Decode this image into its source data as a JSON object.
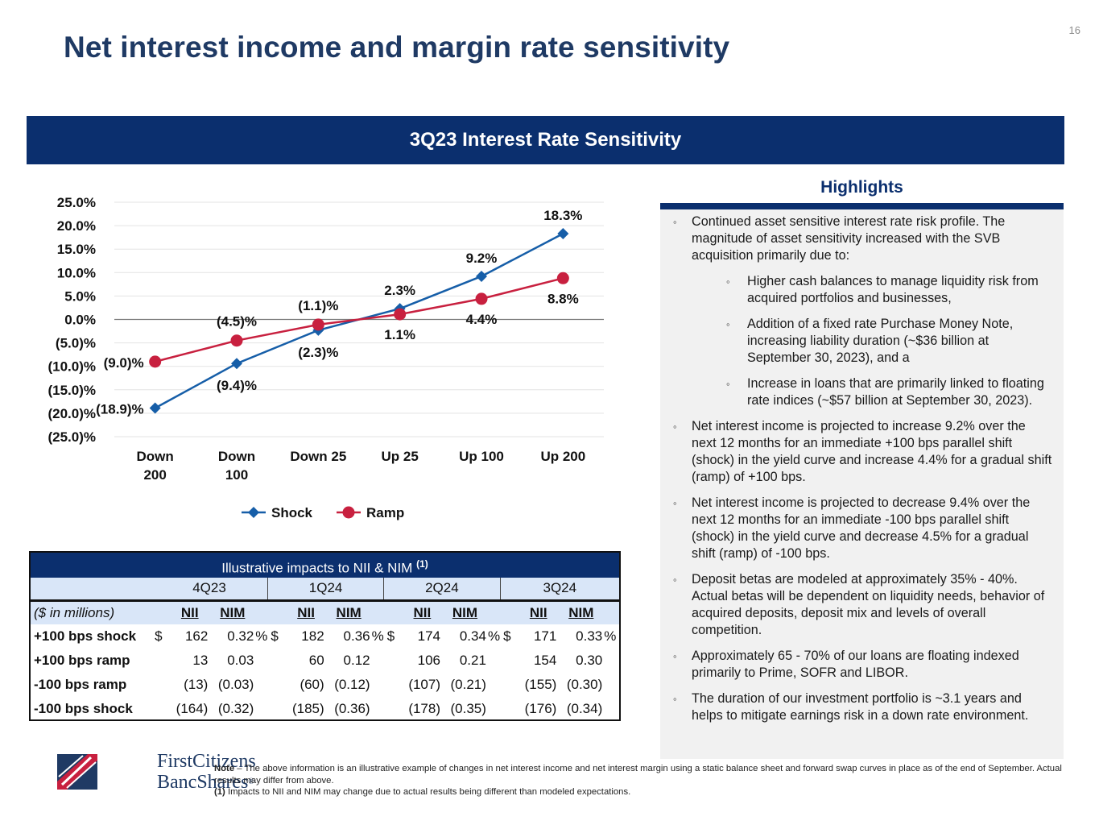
{
  "page": {
    "number": "16",
    "title": "Net interest income and margin rate sensitivity",
    "banner": "3Q23 Interest Rate Sensitivity"
  },
  "chart_data": {
    "type": "line",
    "title": "",
    "xlabel": "",
    "ylabel": "",
    "categories": [
      "Down 200",
      "Down 100",
      "Down 25",
      "Up 25",
      "Up 100",
      "Up 200"
    ],
    "category_lines": [
      [
        "Down",
        "200"
      ],
      [
        "Down",
        "100"
      ],
      [
        "Down 25"
      ],
      [
        "Up 25"
      ],
      [
        "Up 100"
      ],
      [
        "Up 200"
      ]
    ],
    "ylim": [
      -25,
      25
    ],
    "yticks": [
      25,
      20,
      15,
      10,
      5,
      0,
      -5,
      -10,
      -15,
      -20,
      -25
    ],
    "ytick_labels": [
      "25.0%",
      "20.0%",
      "15.0%",
      "10.0%",
      "5.0%",
      "0.0%",
      "(5.0)%",
      "(10.0)%",
      "(15.0)%",
      "(20.0)%",
      "(25.0)%"
    ],
    "grid": true,
    "legend": "bottom",
    "series": [
      {
        "name": "Shock",
        "color": "#165ea8",
        "marker": "diamond",
        "values": [
          -18.9,
          -9.4,
          -2.3,
          2.3,
          9.2,
          18.3
        ],
        "labels": [
          "(18.9)%",
          "(9.4)%",
          "(2.3)%",
          "2.3%",
          "9.2%",
          "18.3%"
        ]
      },
      {
        "name": "Ramp",
        "color": "#c8203f",
        "marker": "circle",
        "values": [
          -9.0,
          -4.5,
          -1.1,
          1.1,
          4.4,
          8.8
        ],
        "labels": [
          "(9.0)%",
          "(4.5)%",
          "(1.1)%",
          "1.1%",
          "4.4%",
          "8.8%"
        ]
      }
    ]
  },
  "highlights": {
    "title": "Highlights",
    "bullet": "◦",
    "items": [
      {
        "text": "Continued asset sensitive interest rate risk profile. The magnitude of asset sensitivity increased with the SVB acquisition primarily due to:"
      },
      {
        "text": "Higher cash balances to manage liquidity risk from acquired portfolios and businesses,"
      },
      {
        "text": "Addition of a fixed rate Purchase Money Note, increasing liability duration (~$36 billion at September 30, 2023), and a"
      },
      {
        "text": "Increase in loans that are primarily linked to floating rate indices (~$57 billion at September 30, 2023)."
      },
      {
        "text": "Net interest income is projected to increase 9.2% over the next 12 months for an immediate +100 bps parallel shift (shock) in the yield curve and increase 4.4% for a gradual shift (ramp) of +100 bps."
      },
      {
        "text": "Net interest income is projected to decrease 9.4% over the next 12 months for an immediate -100 bps parallel shift (shock) in the yield curve and decrease 4.5% for a gradual shift (ramp) of -100 bps."
      },
      {
        "text": "Deposit betas are modeled at approximately 35% - 40%. Actual betas will be dependent on liquidity needs, behavior of acquired deposits, deposit mix and levels of overall competition."
      },
      {
        "text": "Approximately 65 - 70% of our loans are floating indexed primarily to Prime, SOFR and LIBOR."
      },
      {
        "text": "The duration of our investment portfolio is ~3.1 years and helps to mitigate earnings risk in a down rate environment."
      }
    ]
  },
  "table": {
    "title": "Illustrative impacts to NII & NIM",
    "title_sup": "(1)",
    "quarters": [
      "4Q23",
      "1Q24",
      "2Q24",
      "3Q24"
    ],
    "units_label": "($ in millions)",
    "col_nii": "NII",
    "col_nim": "NIM",
    "dollar": "$",
    "pct": "%",
    "rows": [
      {
        "label": "+100 bps shock",
        "vals": [
          [
            "162",
            "0.32"
          ],
          [
            "182",
            "0.36"
          ],
          [
            "174",
            "0.34"
          ],
          [
            "171",
            "0.33"
          ]
        ]
      },
      {
        "label": "+100 bps ramp",
        "vals": [
          [
            "13",
            "0.03"
          ],
          [
            "60",
            "0.12"
          ],
          [
            "106",
            "0.21"
          ],
          [
            "154",
            "0.30"
          ]
        ]
      },
      {
        "label": "-100 bps ramp",
        "vals": [
          [
            "(13)",
            "(0.03)"
          ],
          [
            "(60)",
            "(0.12)"
          ],
          [
            "(107)",
            "(0.21)"
          ],
          [
            "(155)",
            "(0.30)"
          ]
        ]
      },
      {
        "label": "-100 bps shock",
        "vals": [
          [
            "(164)",
            "(0.32)"
          ],
          [
            "(185)",
            "(0.36)"
          ],
          [
            "(178)",
            "(0.35)"
          ],
          [
            "(176)",
            "(0.34)"
          ]
        ]
      }
    ]
  },
  "logo": {
    "line1": "FirstCitizens",
    "line2": "BancShares",
    "reg": "®",
    "colors": {
      "red": "#c8203f",
      "navy": "#1f3a64"
    }
  },
  "note": {
    "lead": "Note",
    "text": " – The above information is an illustrative example of changes in net interest income and net interest margin using a static balance sheet and forward swap curves in place as of the end of September. Actual results may differ from above.",
    "fn_marker": "(1)",
    "fn_text": " Impacts to NII and NIM may change due to actual results being different than modeled expectations."
  }
}
